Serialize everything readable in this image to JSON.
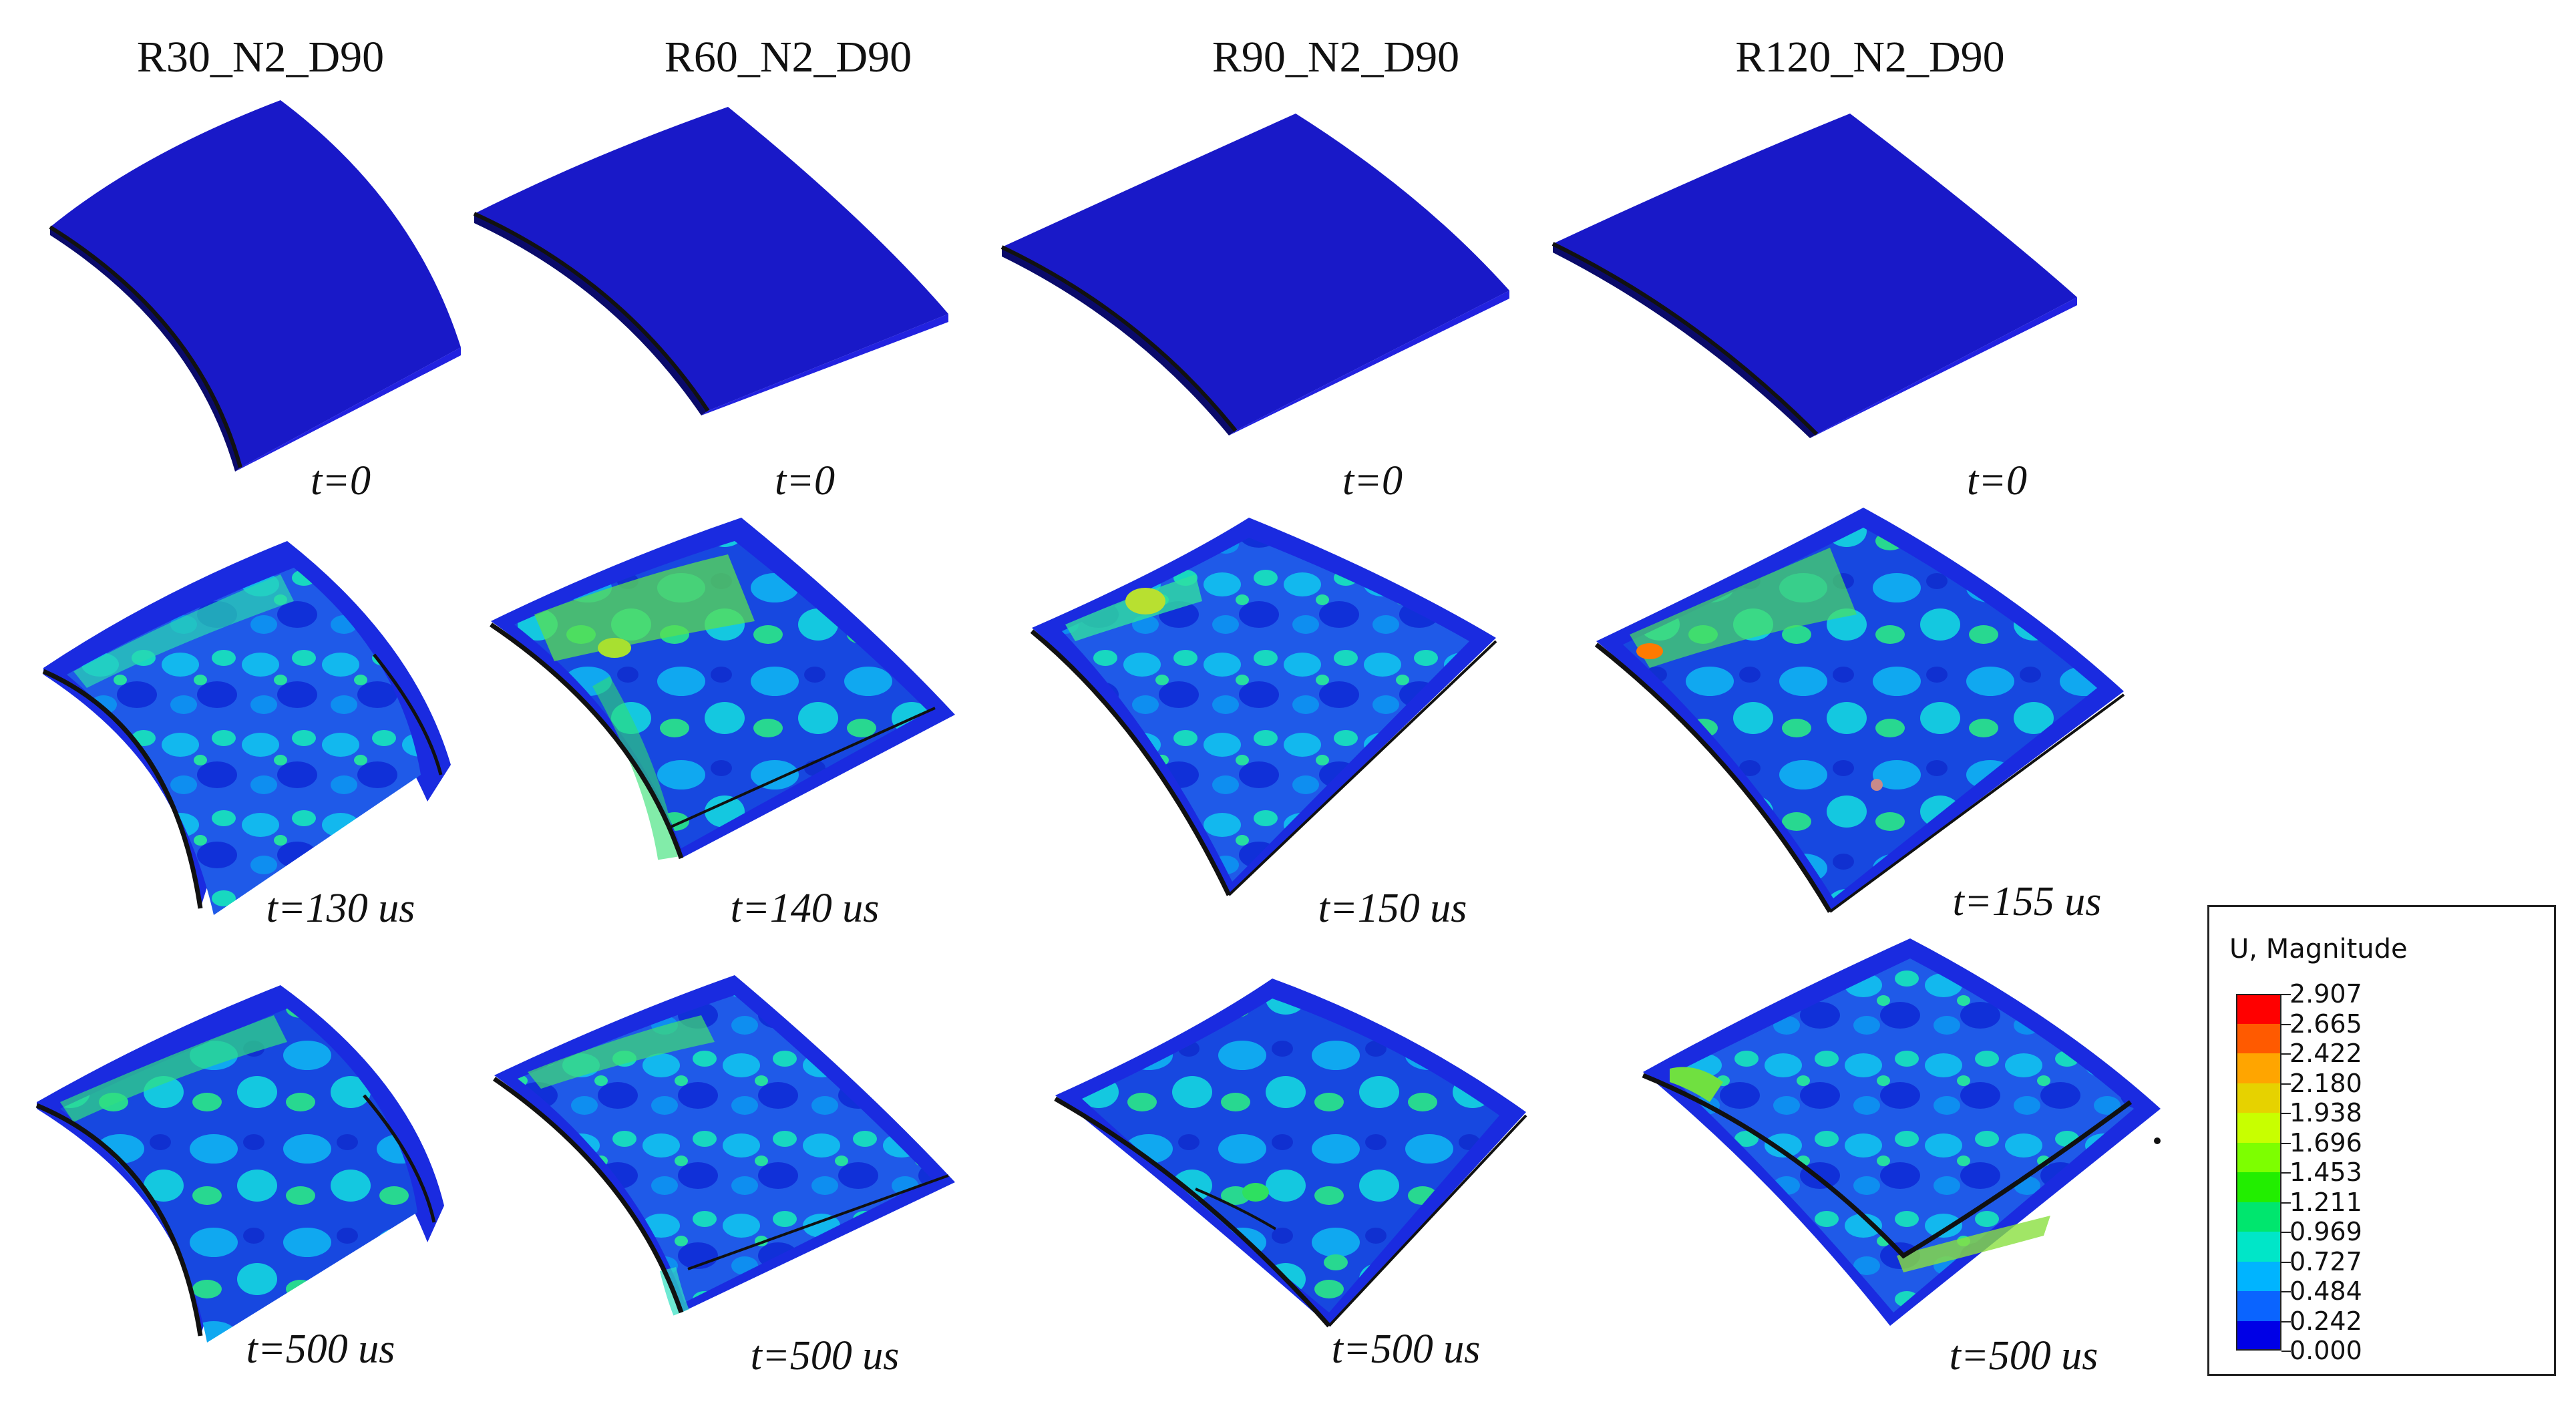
{
  "columns": [
    {
      "title": "R30_N2_D90",
      "times": [
        "t=0",
        "t=130 us",
        "t=500 us"
      ]
    },
    {
      "title": "R60_N2_D90",
      "times": [
        "t=0",
        "t=140 us",
        "t=500 us"
      ]
    },
    {
      "title": "R90_N2_D90",
      "times": [
        "t=0",
        "t=150 us",
        "t=500 us"
      ]
    },
    {
      "title": "R120_N2_D90",
      "times": [
        "t=0",
        "t=155 us",
        "t=500 us"
      ]
    }
  ],
  "legend": {
    "title": "U, Magnitude",
    "values": [
      "2.907",
      "2.665",
      "2.422",
      "2.180",
      "1.938",
      "1.696",
      "1.453",
      "1.211",
      "0.969",
      "0.727",
      "0.484",
      "0.242",
      "0.000"
    ],
    "colors": [
      "#ff0000",
      "#ff5a00",
      "#ffa500",
      "#e6d200",
      "#c8ff00",
      "#7dff00",
      "#22ee00",
      "#00e66e",
      "#00e6c8",
      "#00b4ff",
      "#0a64ff",
      "#0000e6"
    ]
  },
  "colors": {
    "base_blue": "#1414c8",
    "rim_blue": "#0a0adc",
    "outline": "#111111"
  }
}
